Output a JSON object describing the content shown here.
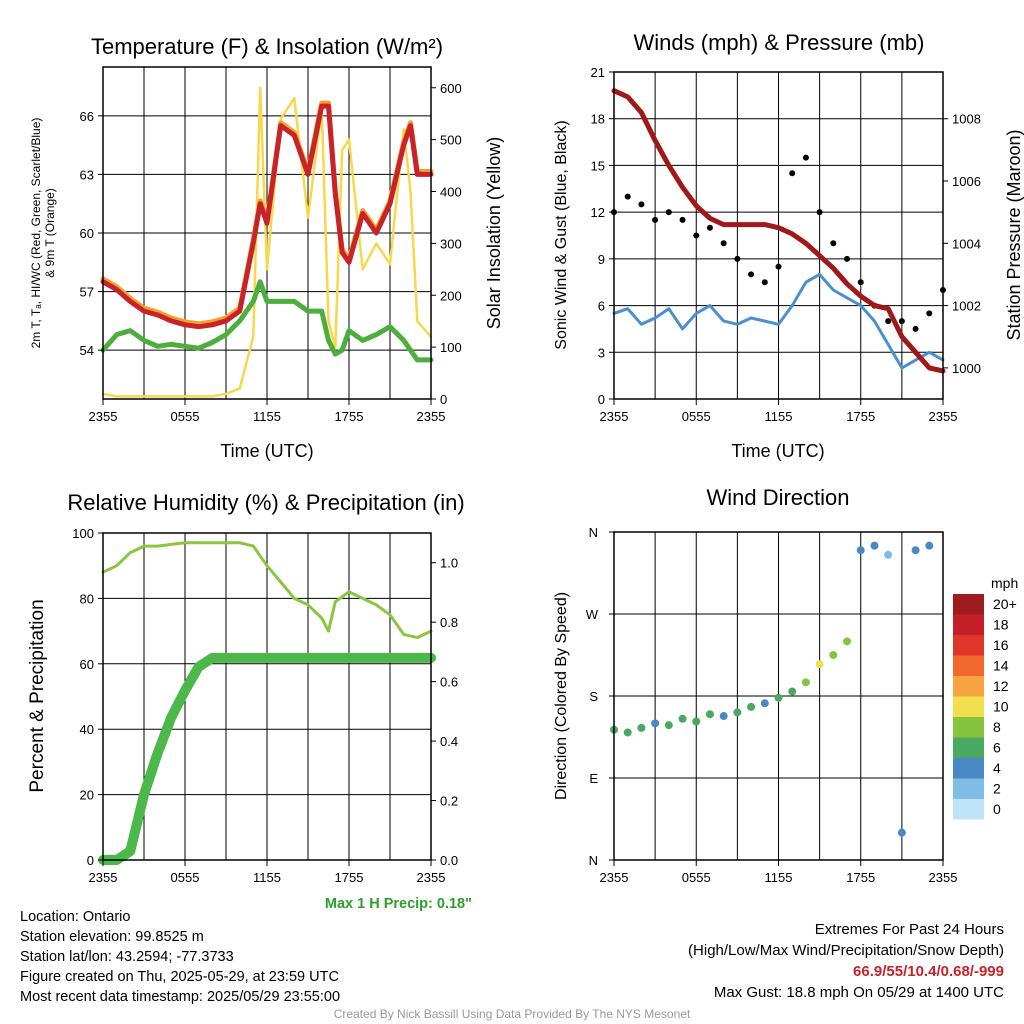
{
  "colors": {
    "temp_red": "#c8222a",
    "temp_orange": "#f4a02a",
    "dewpoint_green": "#4caf3c",
    "heat_blue": "#4a8fcb",
    "solar_yellow": "#f7d84a",
    "wind_blue": "#4a90d0",
    "gust_black": "#000000",
    "pressure_maroon": "#a01818",
    "rh_lightgreen": "#8cc63f",
    "precip_green": "#4cb84a"
  },
  "chart_data": [
    {
      "id": "temp",
      "type": "line",
      "title": "Temperature (F) & Insolation (W/m²)",
      "xlabel": "Time (UTC)",
      "ylabel": "2m T, Tₐ, HI/WC (Red, Green, Scarlet/Blue)",
      "ylabel2": "& 9m T (Orange)",
      "y2label": "Solar Insolation (Yellow)",
      "x_ticks": [
        "2355",
        "0555",
        "1155",
        "1755",
        "2355"
      ],
      "ylim": [
        51.5,
        68.5
      ],
      "y_ticks": [
        54,
        57,
        60,
        63,
        66
      ],
      "y2lim": [
        0,
        640
      ],
      "y2_ticks": [
        0,
        100,
        200,
        300,
        400,
        500,
        600
      ],
      "grid": true,
      "x_hours": [
        0,
        1,
        2,
        3,
        4,
        5,
        6,
        7,
        8,
        9,
        10,
        11,
        11.5,
        12,
        13,
        14,
        15,
        16,
        16.5,
        17,
        17.5,
        18,
        19,
        20,
        21,
        22,
        22.5,
        23,
        24
      ],
      "series": [
        {
          "name": "2m T",
          "values": [
            57.5,
            57.1,
            56.5,
            56.0,
            55.8,
            55.5,
            55.3,
            55.2,
            55.3,
            55.5,
            56.0,
            59.5,
            61.5,
            60.5,
            65.5,
            65.0,
            63.0,
            66.5,
            66.5,
            62.0,
            59.0,
            58.5,
            61.0,
            60.0,
            61.5,
            64.5,
            65.5,
            63.0,
            63.0
          ]
        },
        {
          "name": "Dewpoint",
          "values": [
            54.0,
            54.8,
            55.0,
            54.5,
            54.2,
            54.3,
            54.2,
            54.1,
            54.4,
            54.8,
            55.5,
            56.5,
            57.5,
            56.5,
            56.5,
            56.5,
            56.0,
            56.0,
            54.5,
            53.8,
            54.0,
            55.0,
            54.5,
            54.8,
            55.2,
            54.5,
            54.0,
            53.5,
            53.5
          ]
        },
        {
          "name": "Solar Insolation",
          "axis": "y2",
          "values": [
            10,
            5,
            5,
            5,
            5,
            5,
            5,
            5,
            5,
            10,
            20,
            120,
            600,
            250,
            540,
            580,
            350,
            560,
            150,
            100,
            480,
            500,
            250,
            300,
            260,
            520,
            400,
            150,
            120
          ]
        }
      ]
    },
    {
      "id": "wind",
      "type": "line",
      "title": "Winds (mph) & Pressure (mb)",
      "xlabel": "Time (UTC)",
      "ylabel": "Sonic Wind & Gust (Blue, Black)",
      "y2label": "Station Pressure (Maroon)",
      "x_ticks": [
        "2355",
        "0555",
        "1155",
        "1755",
        "2355"
      ],
      "ylim": [
        0,
        21
      ],
      "y_ticks": [
        0,
        3,
        6,
        9,
        12,
        15,
        18,
        21
      ],
      "y2lim": [
        999.0,
        1009.5
      ],
      "y2_ticks": [
        1000,
        1002,
        1004,
        1006,
        1008
      ],
      "grid": true,
      "x_hours": [
        0,
        1,
        2,
        3,
        4,
        5,
        6,
        7,
        8,
        9,
        10,
        11,
        12,
        13,
        14,
        15,
        16,
        17,
        18,
        19,
        20,
        21,
        22,
        23,
        24
      ],
      "series": [
        {
          "name": "Sonic Wind",
          "values": [
            5.5,
            5.8,
            4.8,
            5.2,
            5.8,
            4.5,
            5.5,
            6.0,
            5.0,
            4.8,
            5.2,
            5.0,
            4.8,
            6.0,
            7.5,
            8.0,
            7.0,
            6.5,
            6.0,
            5.0,
            3.5,
            2.0,
            2.5,
            3.0,
            2.5
          ]
        },
        {
          "name": "Gust",
          "values": [
            12.0,
            13.0,
            12.5,
            11.5,
            12.0,
            11.5,
            10.5,
            11.0,
            10.0,
            9.0,
            8.0,
            7.5,
            8.5,
            14.5,
            15.5,
            12.0,
            10.0,
            9.0,
            7.5,
            6.0,
            5.0,
            5.0,
            4.5,
            5.5,
            7.0
          ]
        },
        {
          "name": "Station Pressure",
          "axis": "y2",
          "values": [
            1008.9,
            1008.7,
            1008.2,
            1007.3,
            1006.5,
            1005.8,
            1005.2,
            1004.8,
            1004.6,
            1004.6,
            1004.6,
            1004.6,
            1004.5,
            1004.3,
            1004.0,
            1003.6,
            1003.2,
            1002.7,
            1002.3,
            1002.0,
            1001.9,
            1001.0,
            1000.5,
            1000.0,
            999.9
          ]
        }
      ]
    },
    {
      "id": "rh",
      "type": "line",
      "title": "Relative Humidity (%) & Precipitation (in)",
      "ylabel": "Percent & Precipitation",
      "x_ticks": [
        "2355",
        "0555",
        "1155",
        "1755",
        "2355"
      ],
      "ylim": [
        0,
        100
      ],
      "y_ticks": [
        0,
        20,
        40,
        60,
        80,
        100
      ],
      "y2lim": [
        0,
        1.1
      ],
      "y2_ticks": [
        "0.0",
        "0.2",
        "0.4",
        "0.6",
        "0.8",
        "1.0"
      ],
      "grid": true,
      "x_hours": [
        0,
        1,
        2,
        3,
        4,
        5,
        6,
        7,
        8,
        9,
        10,
        11,
        12,
        13,
        14,
        15,
        16,
        16.5,
        17,
        18,
        19,
        20,
        21,
        22,
        23,
        24
      ],
      "series": [
        {
          "name": "Relative Humidity",
          "values": [
            88,
            90,
            94,
            96,
            96,
            96.5,
            97,
            97,
            97,
            97,
            97,
            96,
            90,
            85,
            80,
            78,
            74,
            70,
            79,
            82,
            80,
            78,
            75,
            69,
            68,
            70
          ]
        },
        {
          "name": "Precipitation",
          "axis": "y2",
          "values": [
            0.0,
            0.0,
            0.03,
            0.22,
            0.36,
            0.48,
            0.57,
            0.65,
            0.68,
            0.68,
            0.68,
            0.68,
            0.68,
            0.68,
            0.68,
            0.68,
            0.68,
            0.68,
            0.68,
            0.68,
            0.68,
            0.68,
            0.68,
            0.68,
            0.68,
            0.68
          ]
        }
      ]
    },
    {
      "id": "dir",
      "type": "scatter",
      "title": "Wind Direction",
      "ylabel": "Direction (Colored By Speed)",
      "x_ticks": [
        "2355",
        "0555",
        "1155",
        "1755",
        "2355"
      ],
      "y_ticks": [
        "N",
        "E",
        "S",
        "W",
        "N"
      ],
      "ylim": [
        0,
        360
      ],
      "legend_title": "mph",
      "legend_labels": [
        "20+",
        "18",
        "16",
        "14",
        "12",
        "10",
        "8",
        "6",
        "4",
        "2",
        "0"
      ],
      "legend_colors": [
        "#9e1b1f",
        "#c41f26",
        "#e0352b",
        "#f2672e",
        "#f8a340",
        "#f0e04e",
        "#86c440",
        "#4aa960",
        "#4a88c4",
        "#7fbde6",
        "#bfe3f6"
      ],
      "legend": "right",
      "grid": true,
      "x_hours": [
        0,
        1,
        2,
        3,
        4,
        5,
        6,
        7,
        8,
        9,
        10,
        11,
        12,
        13,
        14,
        15,
        16,
        17,
        18,
        19,
        20,
        21,
        22,
        23
      ],
      "values": [
        143,
        140,
        145,
        150,
        148,
        155,
        152,
        160,
        158,
        162,
        168,
        172,
        178,
        185,
        195,
        215,
        225,
        240,
        340,
        345,
        335,
        30,
        340,
        345
      ],
      "speeds": [
        5,
        6,
        5,
        4,
        6,
        5,
        5,
        6,
        4,
        5,
        6,
        4,
        5,
        6,
        8,
        9,
        8,
        7,
        4,
        4,
        2,
        3,
        4,
        4
      ]
    }
  ],
  "precip_note": "Max 1 H Precip: 0.18\"",
  "info": {
    "location": "Location: Ontario",
    "elevation": "Station elevation: 99.8525 m",
    "latlon": "Station lat/lon: 43.2594; -77.3733",
    "created": "Figure created on Thu, 2025-05-29, at 23:59 UTC",
    "recent": "Most recent data timestamp: 2025/05/29 23:55:00"
  },
  "extremes": {
    "title": "Extremes For Past 24 Hours",
    "subtitle": "(High/Low/Max Wind/Precipitation/Snow Depth)",
    "values": "66.9/55/10.4/0.68/-999",
    "gust": "Max Gust: 18.8 mph On 05/29 at 1400 UTC"
  },
  "credit": "Created By Nick Bassill Using Data Provided By The NYS Mesonet"
}
